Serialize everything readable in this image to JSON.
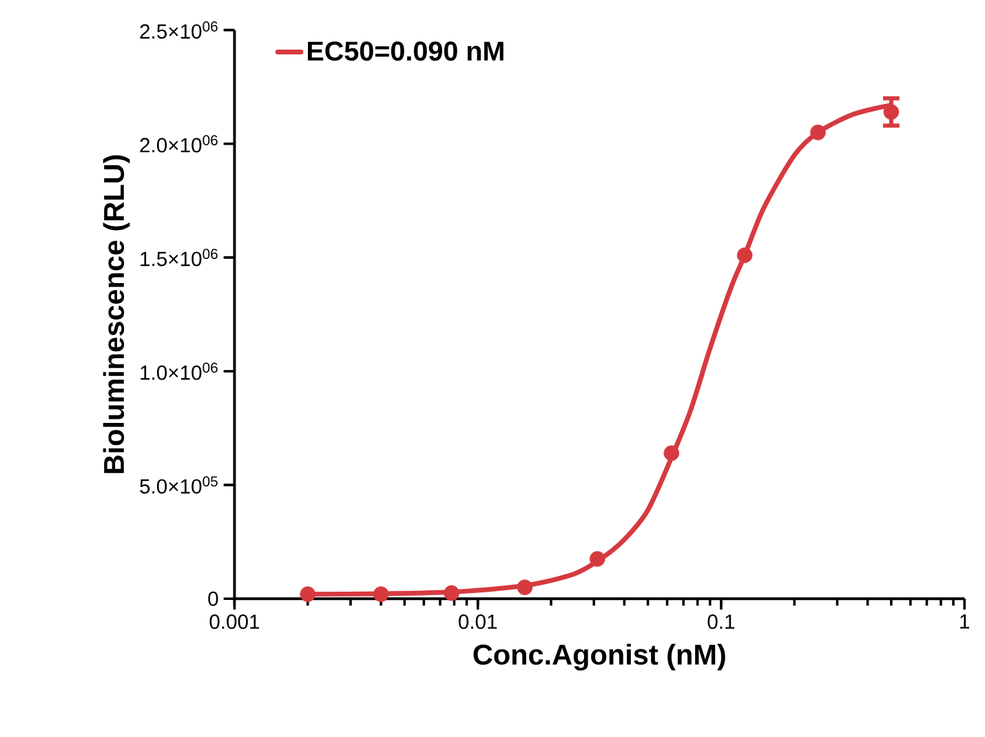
{
  "chart_data": {
    "type": "scatter",
    "xlabel": "Conc.Agonist (nM)",
    "ylabel": "Bioluminescence (RLU)",
    "log": "x",
    "legend": "top left",
    "xlim": [
      0.001,
      1
    ],
    "xticks": [
      0.001,
      0.01,
      0.1,
      1
    ],
    "ylim": [
      0,
      2500000
    ],
    "yticks": [
      {
        "value": 0,
        "label": "0"
      },
      {
        "value": 500000,
        "label": "5.0×10$^{05}$"
      },
      {
        "value": 1000000,
        "label": "1.0×10$^{06}$"
      },
      {
        "value": 1500000,
        "label": "1.5×10$^{06}$"
      },
      {
        "value": 2000000,
        "label": "2.0×10$^{06}$"
      },
      {
        "value": 2500000,
        "label": "2.5×10$^{06}$"
      }
    ],
    "series": [
      {
        "type": "scatter",
        "marker": "circle",
        "color": "#d63a3f",
        "x": [
          0.002,
          0.004,
          0.0078,
          0.0156,
          0.031,
          0.0625,
          0.125,
          0.25,
          0.5
        ],
        "values": [
          20000,
          20000,
          25000,
          50000,
          175000,
          640000,
          1510000,
          2050000,
          2140000
        ],
        "errors": [
          null,
          null,
          null,
          null,
          null,
          null,
          null,
          null,
          60000
        ]
      },
      {
        "type": "line",
        "marker": "none",
        "name": "EC50=0.090 nM",
        "color": "#d63a3f",
        "x": [
          0.002,
          0.004,
          0.008,
          0.016,
          0.025,
          0.032,
          0.04,
          0.05,
          0.0625,
          0.075,
          0.09,
          0.11,
          0.125,
          0.15,
          0.2,
          0.25,
          0.35,
          0.5
        ],
        "values": [
          20000,
          22000,
          30000,
          60000,
          110000,
          175000,
          260000,
          390000,
          620000,
          830000,
          1100000,
          1370000,
          1510000,
          1720000,
          1950000,
          2050000,
          2130000,
          2170000
        ]
      }
    ]
  }
}
